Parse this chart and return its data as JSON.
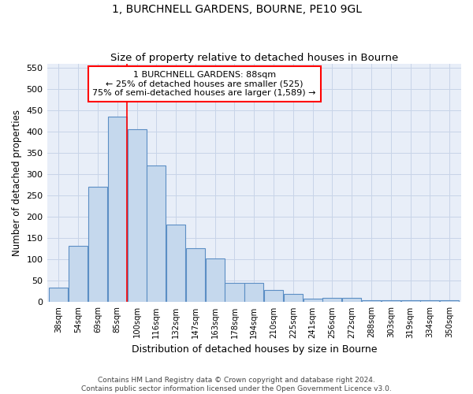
{
  "title": "1, BURCHNELL GARDENS, BOURNE, PE10 9GL",
  "subtitle": "Size of property relative to detached houses in Bourne",
  "xlabel": "Distribution of detached houses by size in Bourne",
  "ylabel": "Number of detached properties",
  "categories": [
    "38sqm",
    "54sqm",
    "69sqm",
    "85sqm",
    "100sqm",
    "116sqm",
    "132sqm",
    "147sqm",
    "163sqm",
    "178sqm",
    "194sqm",
    "210sqm",
    "225sqm",
    "241sqm",
    "256sqm",
    "272sqm",
    "288sqm",
    "303sqm",
    "319sqm",
    "334sqm",
    "350sqm"
  ],
  "values": [
    35,
    133,
    270,
    435,
    405,
    320,
    182,
    127,
    103,
    46,
    46,
    29,
    20,
    8,
    10,
    10,
    5,
    4,
    5,
    5,
    5
  ],
  "bar_color": "#c5d8ed",
  "bar_edge_color": "#5b8ec4",
  "ylim": [
    0,
    560
  ],
  "yticks": [
    0,
    50,
    100,
    150,
    200,
    250,
    300,
    350,
    400,
    450,
    500,
    550
  ],
  "property_label": "1 BURCHNELL GARDENS: 88sqm",
  "annotation_line1": "← 25% of detached houses are smaller (525)",
  "annotation_line2": "75% of semi-detached houses are larger (1,589) →",
  "vline_x": 3.5,
  "footnote1": "Contains HM Land Registry data © Crown copyright and database right 2024.",
  "footnote2": "Contains public sector information licensed under the Open Government Licence v3.0.",
  "grid_color": "#c8d4e8",
  "background_color": "#e8eef8"
}
